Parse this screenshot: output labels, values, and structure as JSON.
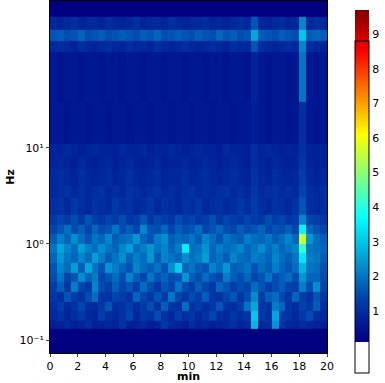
{
  "chart_data": {
    "type": "heatmap",
    "x_label": "min",
    "y_label": "Hz",
    "log": "y",
    "x": [
      0,
      0.5,
      1,
      1.5,
      2,
      2.5,
      3,
      3.5,
      4,
      4.5,
      5,
      5.5,
      6,
      6.5,
      7,
      7.5,
      8,
      8.5,
      9,
      9.5,
      10,
      10.5,
      11,
      11.5,
      12,
      12.5,
      13,
      13.5,
      14,
      14.5,
      15,
      15.5,
      16,
      16.5,
      17,
      17.5,
      18,
      18.5,
      19,
      19.5,
      20
    ],
    "y": [
      0.13,
      0.16,
      0.2,
      0.25,
      0.32,
      0.4,
      0.5,
      0.63,
      0.8,
      1,
      1.26,
      1.6,
      2,
      3,
      4,
      6,
      8,
      11,
      30,
      100,
      130,
      170,
      230
    ],
    "z": [
      [
        0.7,
        0.8,
        0.9,
        0.7,
        0.8,
        1.0,
        0.7,
        0.8,
        0.9,
        0.8,
        1.1,
        0.7,
        0.8,
        0.9,
        0.7,
        0.8,
        1.2,
        0.9,
        0.8,
        0.7,
        1.0,
        0.8,
        0.9,
        0.7,
        0.8,
        0.9,
        1.0,
        0.8,
        0.9,
        2.8,
        0.9,
        1.0,
        2.4,
        1.1,
        0.9,
        0.8,
        1.0,
        0.9,
        0.8,
        0.7
      ],
      [
        0.9,
        1.1,
        0.8,
        1.0,
        1.2,
        0.9,
        0.8,
        1.3,
        1.0,
        0.9,
        1.1,
        1.4,
        0.9,
        1.2,
        1.0,
        1.5,
        1.1,
        0.9,
        1.3,
        1.0,
        1.2,
        0.9,
        1.1,
        1.4,
        1.0,
        0.9,
        1.2,
        1.0,
        1.1,
        3.0,
        1.2,
        1.0,
        2.6,
        1.3,
        1.1,
        0.9,
        1.2,
        1.5,
        1.0,
        0.9
      ],
      [
        1.0,
        1.3,
        0.9,
        1.1,
        1.4,
        1.0,
        0.9,
        1.2,
        1.6,
        1.0,
        1.1,
        1.3,
        1.0,
        1.2,
        1.5,
        1.1,
        1.7,
        1.2,
        1.0,
        1.9,
        1.1,
        1.3,
        1.0,
        1.2,
        1.6,
        1.1,
        1.0,
        1.3,
        2.0,
        2.6,
        1.2,
        1.1,
        2.1,
        1.8,
        1.1,
        1.0,
        1.4,
        1.2,
        1.7,
        1.0
      ],
      [
        1.2,
        1.0,
        1.6,
        1.3,
        1.1,
        1.5,
        1.9,
        1.2,
        1.1,
        1.4,
        1.3,
        1.1,
        1.8,
        1.4,
        1.2,
        1.6,
        1.3,
        2.0,
        1.4,
        1.2,
        1.5,
        1.3,
        1.7,
        1.2,
        1.1,
        1.4,
        1.6,
        1.2,
        1.5,
        2.3,
        1.3,
        1.7,
        1.9,
        1.4,
        1.2,
        1.8,
        1.3,
        1.1,
        1.6,
        1.2
      ],
      [
        1.3,
        1.7,
        1.2,
        2.1,
        1.4,
        1.2,
        2.2,
        1.5,
        1.3,
        1.7,
        1.4,
        1.6,
        1.3,
        1.9,
        1.5,
        1.2,
        1.6,
        1.4,
        2.0,
        1.5,
        1.3,
        1.7,
        1.4,
        1.2,
        1.8,
        1.6,
        1.3,
        1.5,
        1.4,
        1.9,
        1.6,
        1.3,
        1.5,
        1.7,
        1.4,
        1.3,
        2.1,
        1.5,
        2.3,
        1.4
      ],
      [
        1.5,
        2.0,
        1.4,
        1.6,
        2.3,
        1.8,
        2.1,
        1.4,
        1.6,
        1.9,
        1.5,
        2.2,
        1.7,
        1.4,
        2.0,
        1.6,
        1.8,
        1.5,
        1.6,
        2.4,
        1.7,
        1.5,
        1.9,
        1.6,
        1.4,
        2.1,
        1.7,
        1.5,
        1.8,
        1.4,
        1.6,
        2.0,
        1.5,
        1.7,
        1.9,
        1.5,
        2.4,
        1.8,
        1.8,
        1.5
      ],
      [
        1.6,
        2.2,
        1.9,
        2.5,
        1.7,
        2.6,
        2.0,
        1.6,
        2.4,
        2.1,
        1.8,
        1.6,
        2.2,
        1.9,
        1.7,
        2.0,
        1.6,
        2.3,
        3.1,
        1.8,
        2.0,
        1.7,
        1.6,
        2.2,
        1.9,
        2.4,
        1.7,
        1.8,
        2.0,
        1.6,
        1.9,
        1.7,
        2.1,
        1.8,
        1.6,
        1.9,
        2.8,
        2.0,
        1.9,
        1.6
      ],
      [
        1.8,
        2.4,
        2.0,
        1.8,
        2.2,
        1.9,
        2.5,
        2.1,
        1.7,
        2.0,
        2.3,
        1.8,
        2.1,
        1.9,
        2.4,
        1.7,
        2.2,
        2.0,
        1.8,
        2.3,
        1.9,
        2.1,
        2.5,
        1.8,
        2.0,
        1.7,
        2.2,
        1.9,
        1.8,
        2.1,
        2.0,
        1.8,
        2.2,
        1.9,
        1.7,
        2.0,
        3.4,
        2.1,
        2.0,
        1.7
      ],
      [
        2.0,
        2.6,
        2.2,
        1.9,
        2.5,
        2.1,
        1.9,
        2.3,
        2.0,
        1.8,
        2.2,
        2.5,
        1.9,
        2.1,
        2.4,
        2.0,
        2.2,
        1.8,
        2.1,
        3.5,
        1.9,
        2.0,
        2.4,
        1.8,
        2.1,
        1.9,
        2.0,
        2.2,
        1.8,
        2.0,
        2.3,
        1.9,
        2.1,
        1.8,
        2.0,
        2.2,
        4.2,
        2.0,
        1.9,
        1.8
      ],
      [
        1.7,
        2.1,
        1.8,
        2.3,
        1.9,
        1.6,
        2.0,
        1.8,
        2.2,
        1.7,
        1.9,
        2.0,
        2.4,
        1.8,
        1.6,
        2.1,
        2.3,
        1.7,
        1.9,
        1.8,
        2.0,
        1.7,
        2.2,
        1.9,
        1.6,
        2.0,
        1.8,
        1.7,
        2.1,
        1.9,
        1.8,
        2.0,
        1.7,
        1.9,
        2.2,
        1.8,
        5.6,
        2.4,
        1.9,
        1.7
      ],
      [
        1.4,
        1.6,
        1.9,
        1.5,
        1.7,
        1.4,
        1.8,
        1.5,
        1.6,
        2.0,
        1.5,
        1.7,
        1.4,
        2.2,
        1.6,
        1.5,
        1.8,
        1.4,
        1.7,
        1.5,
        1.6,
        1.9,
        1.4,
        1.6,
        1.8,
        1.5,
        1.4,
        1.7,
        1.5,
        1.6,
        1.8,
        1.4,
        1.6,
        1.5,
        1.7,
        1.4,
        3.6,
        1.8,
        1.6,
        1.4
      ],
      [
        1.2,
        1.4,
        1.3,
        1.5,
        1.2,
        1.6,
        1.3,
        1.2,
        1.4,
        1.3,
        1.5,
        1.2,
        1.3,
        1.6,
        1.2,
        1.4,
        1.3,
        1.2,
        1.5,
        1.3,
        1.4,
        1.2,
        1.3,
        1.5,
        1.2,
        1.4,
        1.3,
        1.2,
        1.4,
        1.3,
        1.2,
        1.5,
        1.3,
        1.4,
        1.2,
        1.3,
        2.2,
        1.4,
        1.3,
        1.2
      ],
      [
        1.0,
        1.1,
        0.9,
        1.2,
        1.0,
        0.9,
        1.1,
        1.0,
        0.9,
        1.2,
        1.0,
        1.1,
        0.9,
        1.0,
        1.2,
        0.9,
        1.1,
        1.0,
        0.9,
        1.1,
        1.0,
        1.2,
        0.9,
        1.0,
        1.1,
        0.9,
        1.0,
        1.2,
        1.0,
        1.3,
        1.0,
        0.9,
        1.1,
        1.0,
        0.9,
        1.1,
        1.6,
        1.0,
        0.9,
        1.0
      ],
      [
        0.9,
        1.0,
        1.1,
        0.9,
        1.0,
        0.9,
        1.0,
        1.1,
        0.9,
        1.0,
        0.9,
        1.1,
        1.0,
        0.9,
        1.0,
        1.1,
        0.9,
        1.0,
        0.9,
        1.0,
        1.1,
        0.9,
        1.0,
        0.9,
        1.0,
        1.1,
        0.9,
        1.0,
        0.9,
        1.2,
        0.9,
        1.0,
        1.1,
        0.9,
        1.0,
        0.9,
        1.4,
        1.0,
        0.9,
        1.0
      ],
      [
        0.9,
        1.0,
        0.9,
        0.8,
        1.0,
        0.9,
        0.8,
        0.9,
        1.0,
        0.8,
        0.9,
        1.0,
        0.9,
        0.8,
        0.9,
        1.0,
        0.8,
        0.9,
        0.9,
        1.0,
        0.8,
        0.9,
        1.0,
        0.9,
        0.8,
        0.9,
        1.0,
        0.9,
        0.8,
        1.1,
        0.9,
        0.8,
        1.0,
        0.9,
        0.8,
        0.9,
        1.3,
        0.9,
        0.8,
        0.9
      ],
      [
        0.8,
        0.9,
        0.8,
        0.7,
        0.9,
        0.8,
        0.7,
        0.8,
        0.9,
        0.7,
        0.8,
        0.9,
        0.8,
        0.7,
        0.8,
        0.9,
        0.7,
        0.8,
        0.8,
        0.9,
        0.7,
        0.8,
        0.9,
        0.8,
        0.7,
        0.8,
        0.9,
        0.8,
        0.7,
        1.0,
        0.8,
        0.7,
        0.9,
        0.8,
        0.7,
        0.8,
        1.2,
        0.8,
        0.7,
        0.8
      ],
      [
        0.8,
        0.8,
        0.9,
        0.8,
        0.7,
        0.8,
        0.9,
        0.8,
        0.8,
        0.7,
        0.9,
        0.8,
        0.8,
        0.9,
        0.7,
        0.8,
        0.8,
        0.9,
        0.8,
        0.7,
        0.8,
        0.9,
        0.8,
        0.8,
        0.7,
        0.9,
        0.8,
        0.8,
        0.7,
        1.0,
        0.8,
        0.9,
        0.8,
        0.7,
        0.8,
        0.8,
        1.1,
        0.8,
        0.7,
        0.8
      ],
      [
        0.6,
        0.6,
        0.5,
        0.6,
        0.6,
        0.5,
        0.6,
        0.6,
        0.5,
        0.6,
        0.6,
        0.5,
        0.6,
        0.6,
        0.5,
        0.6,
        0.6,
        0.5,
        0.6,
        0.6,
        0.5,
        0.6,
        0.6,
        0.5,
        0.6,
        0.6,
        0.5,
        0.6,
        0.6,
        0.7,
        0.6,
        0.5,
        0.6,
        0.6,
        0.5,
        0.6,
        1.0,
        0.6,
        0.5,
        0.6
      ],
      [
        0.6,
        0.5,
        0.6,
        0.6,
        0.5,
        0.6,
        0.6,
        0.5,
        0.6,
        0.6,
        0.5,
        0.6,
        0.6,
        0.5,
        0.6,
        0.6,
        0.5,
        0.6,
        0.6,
        0.5,
        0.6,
        0.6,
        0.5,
        0.6,
        0.6,
        0.5,
        0.6,
        0.6,
        0.5,
        0.8,
        0.6,
        0.5,
        0.6,
        0.6,
        0.5,
        0.6,
        2.0,
        0.6,
        0.5,
        0.6
      ],
      [
        0.9,
        1.0,
        0.9,
        0.8,
        1.0,
        0.9,
        0.8,
        0.9,
        1.0,
        0.9,
        0.8,
        1.0,
        0.9,
        0.9,
        0.8,
        1.0,
        0.9,
        0.8,
        0.9,
        1.0,
        0.9,
        0.8,
        0.9,
        1.0,
        0.9,
        0.8,
        1.0,
        0.9,
        0.9,
        1.6,
        1.0,
        0.9,
        0.8,
        0.9,
        1.0,
        0.9,
        2.2,
        1.0,
        0.9,
        0.8
      ],
      [
        1.6,
        1.7,
        1.5,
        1.6,
        1.8,
        1.5,
        1.6,
        1.7,
        1.5,
        1.6,
        1.7,
        1.6,
        1.5,
        1.7,
        1.6,
        1.8,
        1.5,
        1.6,
        1.7,
        1.6,
        1.5,
        1.7,
        1.6,
        1.5,
        1.8,
        1.6,
        1.7,
        1.5,
        1.6,
        2.6,
        1.7,
        1.6,
        1.5,
        1.7,
        1.6,
        1.5,
        3.0,
        1.7,
        1.8,
        1.7
      ],
      [
        0.9,
        0.8,
        0.9,
        1.0,
        0.8,
        0.9,
        0.9,
        0.8,
        1.0,
        0.9,
        0.8,
        0.9,
        1.0,
        0.8,
        0.9,
        0.9,
        0.8,
        1.0,
        0.9,
        0.8,
        0.9,
        0.9,
        1.0,
        0.8,
        0.9,
        0.8,
        0.9,
        1.0,
        0.9,
        1.6,
        0.9,
        0.8,
        0.9,
        1.0,
        0.8,
        0.9,
        2.2,
        0.9,
        1.0,
        0.9
      ]
    ],
    "xlim": [
      0,
      20
    ],
    "xticks": [
      0,
      2,
      4,
      6,
      8,
      10,
      12,
      14,
      16,
      18,
      20
    ],
    "ylim": [
      0.0735,
      336
    ],
    "yticks": [
      {
        "value": 0.1,
        "label": "10⁻¹"
      },
      {
        "value": 1,
        "label": "10⁰"
      },
      {
        "value": 10,
        "label": "10¹"
      }
    ],
    "zlim": [
      0.1,
      9.7
    ],
    "zticks": [
      1,
      2,
      3,
      4,
      5,
      6,
      7,
      8,
      9
    ]
  }
}
